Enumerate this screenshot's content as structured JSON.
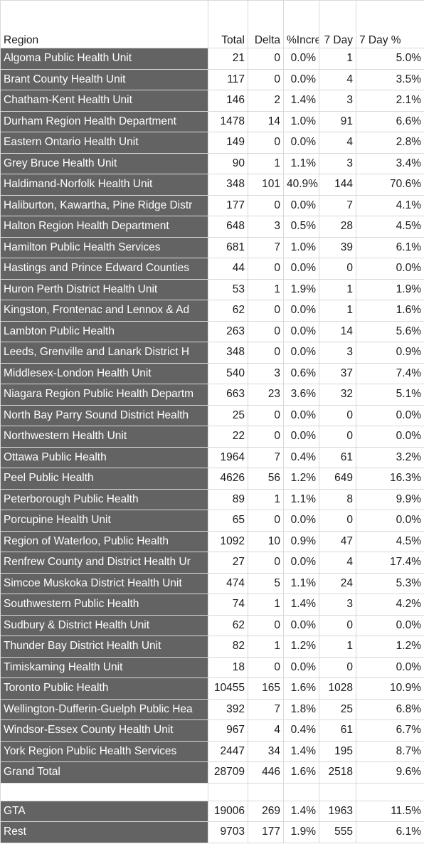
{
  "headers": {
    "region": "Region",
    "total": "Total",
    "delta": "Delta",
    "pct_increase": "%Increase",
    "seven_day": "7 Day",
    "seven_day_pct": "7 Day %"
  },
  "rows": [
    {
      "region": "Algoma Public Health Unit",
      "total": "21",
      "delta": "0",
      "pct": "0.0%",
      "seven_day": "1",
      "seven_day_pct": "5.0%"
    },
    {
      "region": "Brant County Health Unit",
      "total": "117",
      "delta": "0",
      "pct": "0.0%",
      "seven_day": "4",
      "seven_day_pct": "3.5%"
    },
    {
      "region": "Chatham-Kent Health Unit",
      "total": "146",
      "delta": "2",
      "pct": "1.4%",
      "seven_day": "3",
      "seven_day_pct": "2.1%"
    },
    {
      "region": "Durham Region Health Department",
      "total": "1478",
      "delta": "14",
      "pct": "1.0%",
      "seven_day": "91",
      "seven_day_pct": "6.6%"
    },
    {
      "region": "Eastern Ontario Health Unit",
      "total": "149",
      "delta": "0",
      "pct": "0.0%",
      "seven_day": "4",
      "seven_day_pct": "2.8%"
    },
    {
      "region": "Grey Bruce Health Unit",
      "total": "90",
      "delta": "1",
      "pct": "1.1%",
      "seven_day": "3",
      "seven_day_pct": "3.4%"
    },
    {
      "region": "Haldimand-Norfolk Health Unit",
      "total": "348",
      "delta": "101",
      "pct": "40.9%",
      "seven_day": "144",
      "seven_day_pct": "70.6%"
    },
    {
      "region": "Haliburton, Kawartha, Pine Ridge Distr",
      "total": "177",
      "delta": "0",
      "pct": "0.0%",
      "seven_day": "7",
      "seven_day_pct": "4.1%"
    },
    {
      "region": "Halton Region Health Department",
      "total": "648",
      "delta": "3",
      "pct": "0.5%",
      "seven_day": "28",
      "seven_day_pct": "4.5%"
    },
    {
      "region": "Hamilton Public Health Services",
      "total": "681",
      "delta": "7",
      "pct": "1.0%",
      "seven_day": "39",
      "seven_day_pct": "6.1%"
    },
    {
      "region": "Hastings and Prince Edward Counties",
      "total": "44",
      "delta": "0",
      "pct": "0.0%",
      "seven_day": "0",
      "seven_day_pct": "0.0%"
    },
    {
      "region": "Huron Perth District Health Unit",
      "total": "53",
      "delta": "1",
      "pct": "1.9%",
      "seven_day": "1",
      "seven_day_pct": "1.9%"
    },
    {
      "region": "Kingston, Frontenac and Lennox & Ad",
      "total": "62",
      "delta": "0",
      "pct": "0.0%",
      "seven_day": "1",
      "seven_day_pct": "1.6%"
    },
    {
      "region": "Lambton Public Health",
      "total": "263",
      "delta": "0",
      "pct": "0.0%",
      "seven_day": "14",
      "seven_day_pct": "5.6%"
    },
    {
      "region": "Leeds, Grenville and Lanark District H",
      "total": "348",
      "delta": "0",
      "pct": "0.0%",
      "seven_day": "3",
      "seven_day_pct": "0.9%"
    },
    {
      "region": "Middlesex-London Health Unit",
      "total": "540",
      "delta": "3",
      "pct": "0.6%",
      "seven_day": "37",
      "seven_day_pct": "7.4%"
    },
    {
      "region": "Niagara Region Public Health Departm",
      "total": "663",
      "delta": "23",
      "pct": "3.6%",
      "seven_day": "32",
      "seven_day_pct": "5.1%"
    },
    {
      "region": "North Bay Parry Sound District Health",
      "total": "25",
      "delta": "0",
      "pct": "0.0%",
      "seven_day": "0",
      "seven_day_pct": "0.0%"
    },
    {
      "region": "Northwestern Health Unit",
      "total": "22",
      "delta": "0",
      "pct": "0.0%",
      "seven_day": "0",
      "seven_day_pct": "0.0%"
    },
    {
      "region": "Ottawa Public Health",
      "total": "1964",
      "delta": "7",
      "pct": "0.4%",
      "seven_day": "61",
      "seven_day_pct": "3.2%"
    },
    {
      "region": "Peel Public Health",
      "total": "4626",
      "delta": "56",
      "pct": "1.2%",
      "seven_day": "649",
      "seven_day_pct": "16.3%"
    },
    {
      "region": "Peterborough Public Health",
      "total": "89",
      "delta": "1",
      "pct": "1.1%",
      "seven_day": "8",
      "seven_day_pct": "9.9%"
    },
    {
      "region": "Porcupine Health Unit",
      "total": "65",
      "delta": "0",
      "pct": "0.0%",
      "seven_day": "0",
      "seven_day_pct": "0.0%"
    },
    {
      "region": "Region of Waterloo, Public Health",
      "total": "1092",
      "delta": "10",
      "pct": "0.9%",
      "seven_day": "47",
      "seven_day_pct": "4.5%"
    },
    {
      "region": "Renfrew County and District Health Ur",
      "total": "27",
      "delta": "0",
      "pct": "0.0%",
      "seven_day": "4",
      "seven_day_pct": "17.4%"
    },
    {
      "region": "Simcoe Muskoka District Health Unit",
      "total": "474",
      "delta": "5",
      "pct": "1.1%",
      "seven_day": "24",
      "seven_day_pct": "5.3%"
    },
    {
      "region": "Southwestern Public Health",
      "total": "74",
      "delta": "1",
      "pct": "1.4%",
      "seven_day": "3",
      "seven_day_pct": "4.2%"
    },
    {
      "region": "Sudbury & District Health Unit",
      "total": "62",
      "delta": "0",
      "pct": "0.0%",
      "seven_day": "0",
      "seven_day_pct": "0.0%"
    },
    {
      "region": "Thunder Bay District Health Unit",
      "total": "82",
      "delta": "1",
      "pct": "1.2%",
      "seven_day": "1",
      "seven_day_pct": "1.2%"
    },
    {
      "region": "Timiskaming Health Unit",
      "total": "18",
      "delta": "0",
      "pct": "0.0%",
      "seven_day": "0",
      "seven_day_pct": "0.0%"
    },
    {
      "region": "Toronto Public Health",
      "total": "10455",
      "delta": "165",
      "pct": "1.6%",
      "seven_day": "1028",
      "seven_day_pct": "10.9%"
    },
    {
      "region": "Wellington-Dufferin-Guelph Public Hea",
      "total": "392",
      "delta": "7",
      "pct": "1.8%",
      "seven_day": "25",
      "seven_day_pct": "6.8%"
    },
    {
      "region": "Windsor-Essex County Health Unit",
      "total": "967",
      "delta": "4",
      "pct": "0.4%",
      "seven_day": "61",
      "seven_day_pct": "6.7%"
    },
    {
      "region": "York Region Public Health Services",
      "total": "2447",
      "delta": "34",
      "pct": "1.4%",
      "seven_day": "195",
      "seven_day_pct": "8.7%"
    },
    {
      "region": "Grand Total",
      "total": "28709",
      "delta": "446",
      "pct": "1.6%",
      "seven_day": "2518",
      "seven_day_pct": "9.6%"
    }
  ],
  "summary_rows": [
    {
      "region": "GTA",
      "total": "19006",
      "delta": "269",
      "pct": "1.4%",
      "seven_day": "1963",
      "seven_day_pct": "11.5%"
    },
    {
      "region": "Rest",
      "total": "9703",
      "delta": "177",
      "pct": "1.9%",
      "seven_day": "555",
      "seven_day_pct": "6.1%"
    }
  ],
  "colors": {
    "region_fill": "#636363",
    "region_text": "#ffffff",
    "grid": "#d9d9d9"
  }
}
